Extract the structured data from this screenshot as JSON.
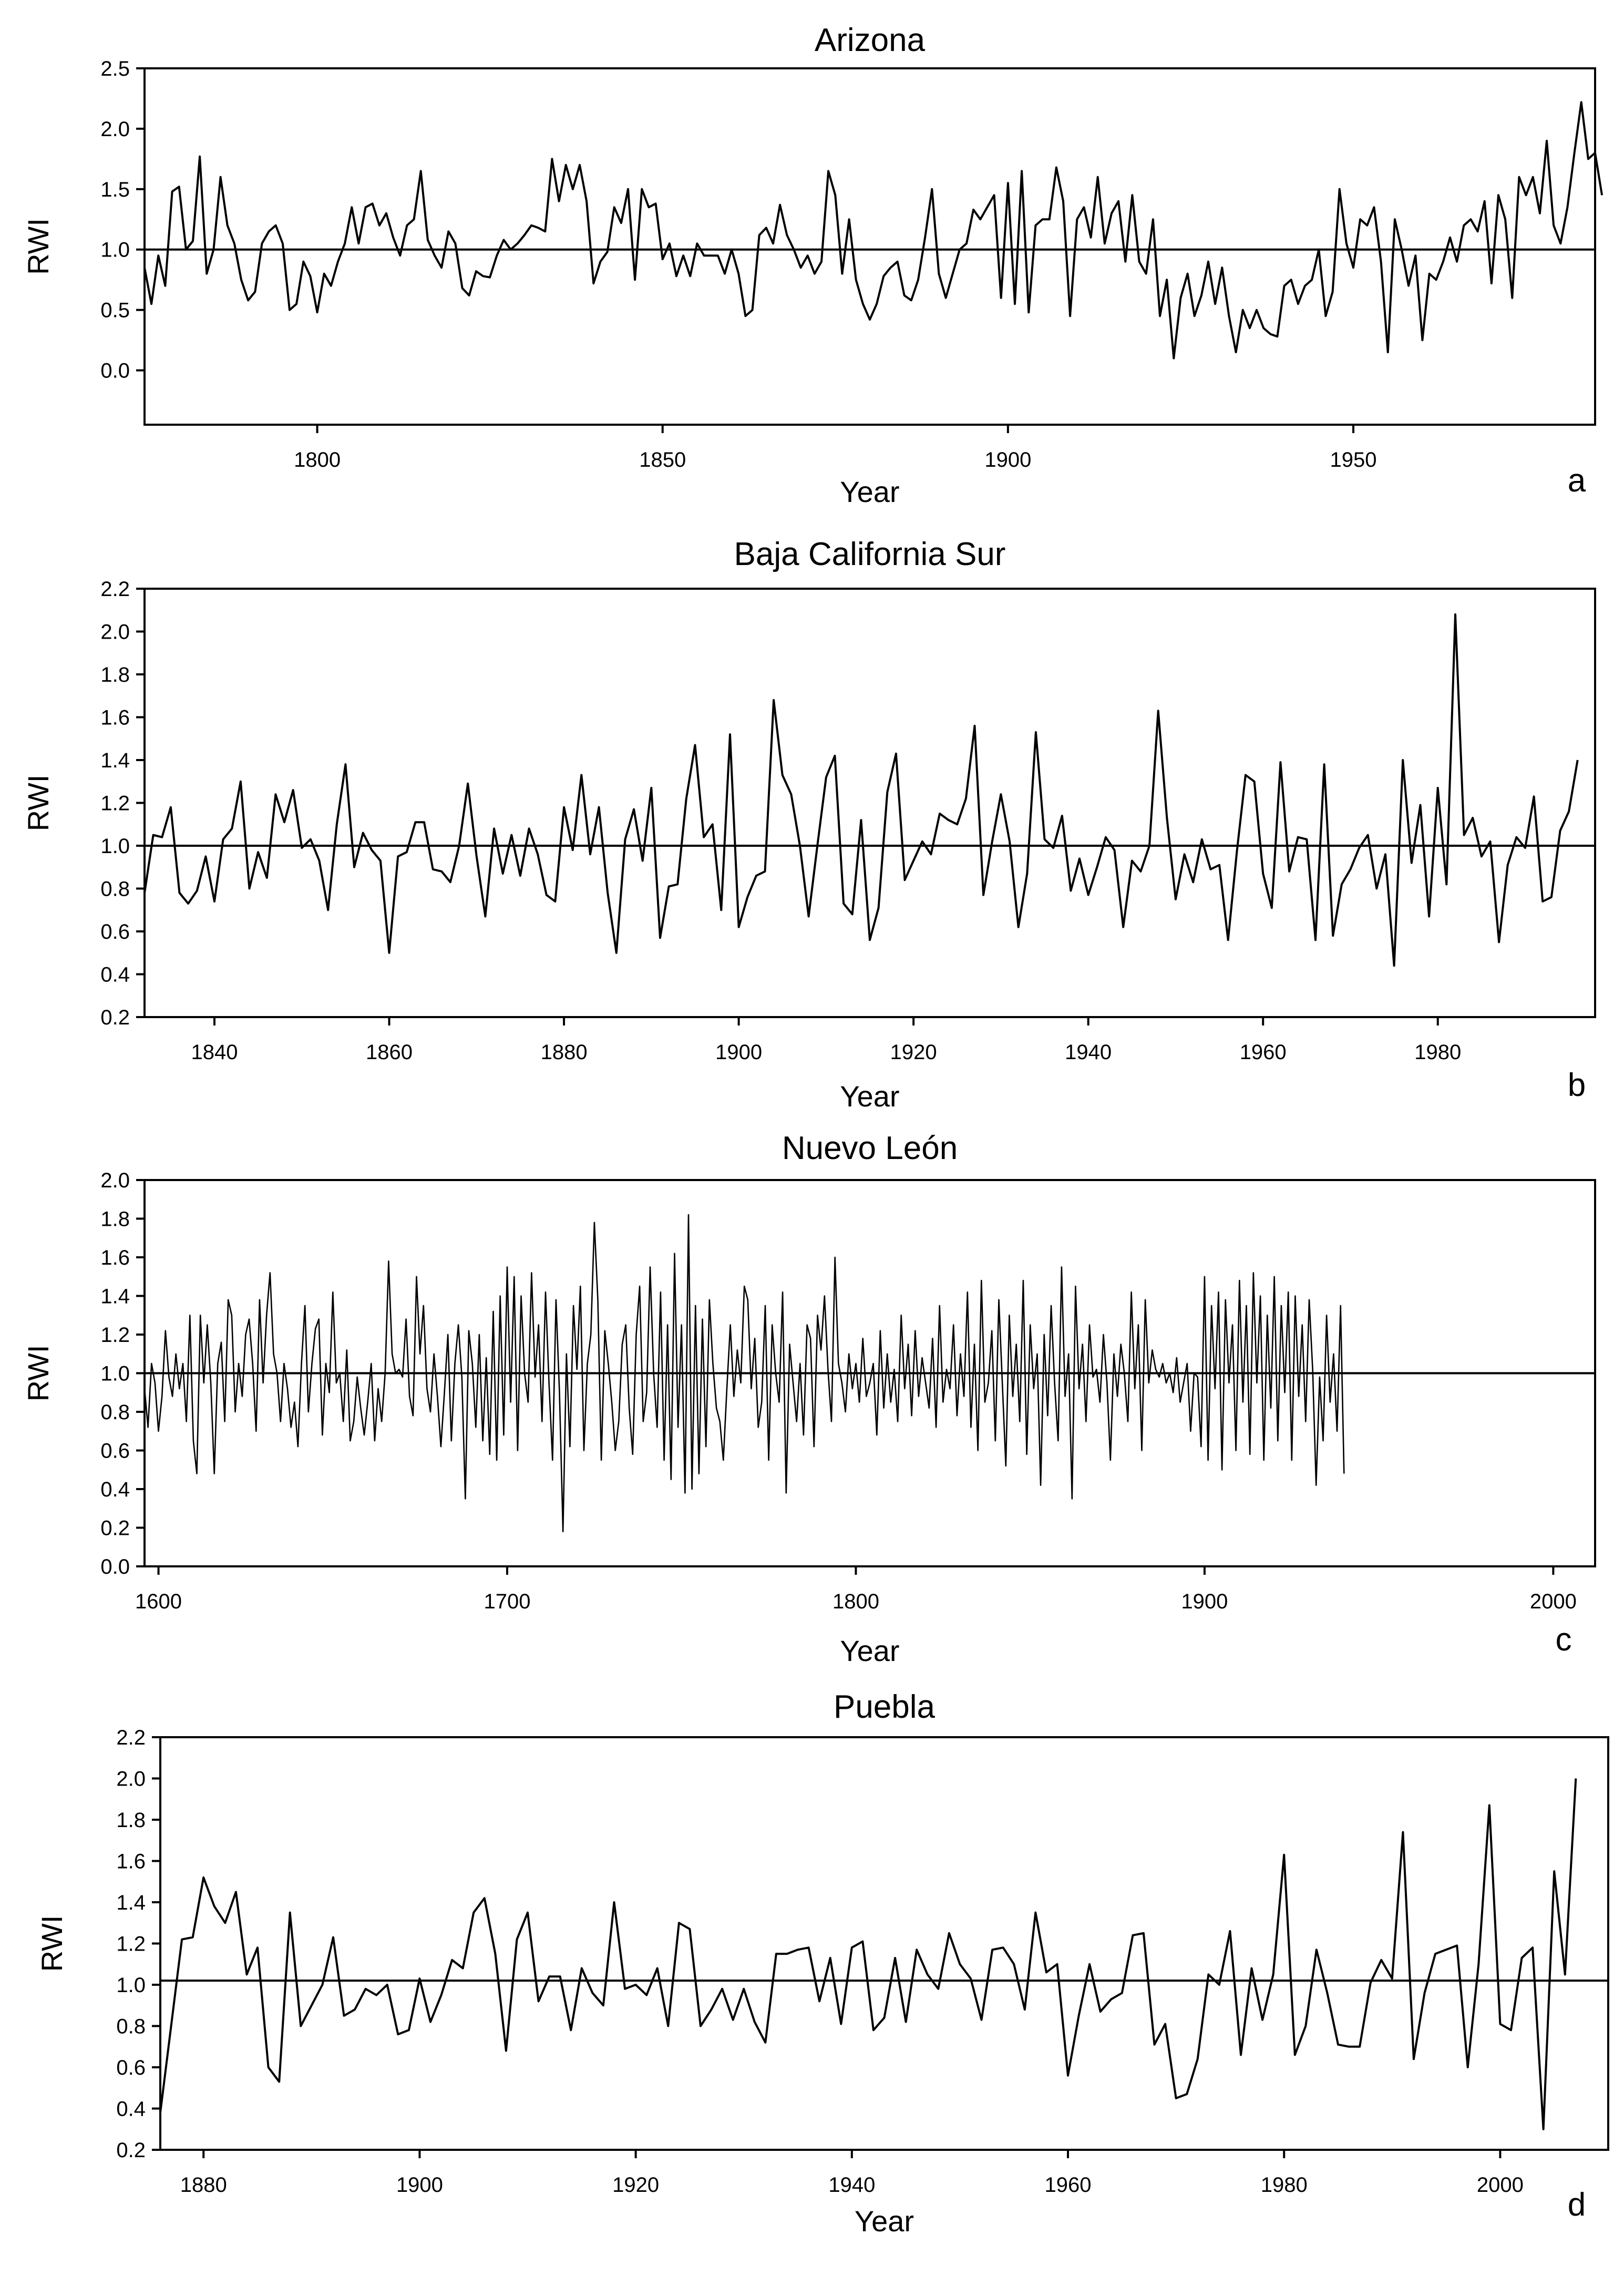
{
  "chart_data": [
    {
      "type": "line",
      "title": "Arizona",
      "panel": "a",
      "xlabel": "Year",
      "ylabel": "RWI",
      "xlim": [
        1775,
        1985
      ],
      "ylim": [
        -0.45,
        2.5
      ],
      "xticks": [
        1800,
        1850,
        1900,
        1950
      ],
      "yticks": [
        "0.0",
        "0.5",
        "1.0",
        "1.5",
        "2.0",
        "2.5"
      ],
      "reference_line": 1.0,
      "start_year": 1775,
      "values": [
        0.85,
        0.55,
        0.95,
        0.7,
        1.48,
        1.52,
        1.0,
        1.07,
        1.77,
        0.8,
        1.0,
        1.6,
        1.2,
        1.05,
        0.75,
        0.58,
        0.65,
        1.05,
        1.15,
        1.2,
        1.05,
        0.5,
        0.55,
        0.9,
        0.78,
        0.48,
        0.8,
        0.7,
        0.9,
        1.05,
        1.35,
        1.05,
        1.35,
        1.38,
        1.2,
        1.3,
        1.1,
        0.95,
        1.2,
        1.25,
        1.65,
        1.08,
        0.95,
        0.85,
        1.15,
        1.05,
        0.68,
        0.62,
        0.82,
        0.78,
        0.77,
        0.95,
        1.08,
        1.0,
        1.05,
        1.12,
        1.2,
        1.18,
        1.15,
        1.75,
        1.4,
        1.7,
        1.5,
        1.7,
        1.4,
        0.72,
        0.9,
        0.98,
        1.35,
        1.22,
        1.5,
        0.75,
        1.5,
        1.35,
        1.38,
        0.92,
        1.05,
        0.78,
        0.95,
        0.78,
        1.05,
        0.95,
        0.95,
        0.95,
        0.8,
        1.0,
        0.8,
        0.45,
        0.5,
        1.12,
        1.18,
        1.05,
        1.37,
        1.12,
        1.0,
        0.85,
        0.95,
        0.8,
        0.9,
        1.65,
        1.45,
        0.8,
        1.25,
        0.75,
        0.55,
        0.42,
        0.55,
        0.78,
        0.85,
        0.9,
        0.62,
        0.58,
        0.75,
        1.1,
        1.5,
        0.8,
        0.6,
        0.8,
        1.0,
        1.05,
        1.33,
        1.25,
        1.35,
        1.45,
        0.6,
        1.55,
        0.55,
        1.65,
        0.48,
        1.2,
        1.25,
        1.25,
        1.68,
        1.4,
        0.45,
        1.25,
        1.35,
        1.1,
        1.6,
        1.05,
        1.3,
        1.4,
        0.9,
        1.45,
        0.9,
        0.8,
        1.25,
        0.45,
        0.75,
        0.1,
        0.6,
        0.8,
        0.45,
        0.62,
        0.9,
        0.55,
        0.85,
        0.45,
        0.15,
        0.5,
        0.35,
        0.5,
        0.35,
        0.3,
        0.28,
        0.7,
        0.75,
        0.55,
        0.7,
        0.75,
        1.0,
        0.45,
        0.65,
        1.5,
        1.05,
        0.85,
        1.25,
        1.2,
        1.35,
        0.9,
        0.15,
        1.25,
        1.0,
        0.7,
        0.95,
        0.25,
        0.8,
        0.75,
        0.9,
        1.1,
        0.9,
        1.2,
        1.25,
        1.15,
        1.4,
        0.72,
        1.45,
        1.25,
        0.6,
        1.6,
        1.45,
        1.6,
        1.3,
        1.9,
        1.2,
        1.05,
        1.35,
        1.8,
        2.22,
        1.75,
        1.8,
        1.45
      ]
    },
    {
      "type": "line",
      "title": "Baja California Sur",
      "panel": "b",
      "xlabel": "Year",
      "ylabel": "RWI",
      "xlim": [
        1832,
        1998
      ],
      "ylim": [
        0.2,
        2.2
      ],
      "xticks": [
        1840,
        1860,
        1880,
        1900,
        1920,
        1940,
        1960,
        1980
      ],
      "yticks": [
        "0.2",
        "0.4",
        "0.6",
        "0.8",
        "1.0",
        "1.2",
        "1.4",
        "1.6",
        "1.8",
        "2.0",
        "2.2"
      ],
      "reference_line": 1.0,
      "start_year": 1832,
      "values": [
        0.78,
        1.05,
        1.04,
        1.18,
        0.78,
        0.73,
        0.79,
        0.95,
        0.74,
        1.03,
        1.08,
        1.3,
        0.8,
        0.97,
        0.85,
        1.24,
        1.11,
        1.26,
        0.99,
        1.03,
        0.93,
        0.7,
        1.1,
        1.38,
        0.9,
        1.06,
        0.98,
        0.93,
        0.5,
        0.95,
        0.97,
        1.11,
        1.11,
        0.89,
        0.88,
        0.83,
        1.0,
        1.29,
        0.95,
        0.67,
        1.08,
        0.87,
        1.05,
        0.86,
        1.08,
        0.96,
        0.77,
        0.74,
        1.18,
        0.98,
        1.33,
        0.96,
        1.18,
        0.78,
        0.5,
        1.03,
        1.17,
        0.93,
        1.27,
        0.57,
        0.81,
        0.82,
        1.22,
        1.47,
        1.04,
        1.1,
        0.7,
        1.52,
        0.62,
        0.76,
        0.86,
        0.88,
        1.68,
        1.33,
        1.24,
        1.0,
        0.67,
        1.0,
        1.32,
        1.42,
        0.73,
        0.68,
        1.12,
        0.56,
        0.71,
        1.25,
        1.43,
        0.84,
        0.93,
        1.02,
        0.96,
        1.15,
        1.12,
        1.1,
        1.22,
        1.56,
        0.77,
        1.02,
        1.24,
        1.02,
        0.62,
        0.87,
        1.53,
        1.03,
        0.99,
        1.14,
        0.79,
        0.94,
        0.77,
        0.9,
        1.04,
        0.98,
        0.62,
        0.93,
        0.88,
        1.0,
        1.63,
        1.13,
        0.75,
        0.96,
        0.83,
        1.03,
        0.89,
        0.91,
        0.56,
        0.97,
        1.33,
        1.3,
        0.87,
        0.71,
        1.39,
        0.88,
        1.04,
        1.03,
        0.56,
        1.38,
        0.58,
        0.82,
        0.89,
        0.99,
        1.05,
        0.8,
        0.96,
        0.44,
        1.4,
        0.92,
        1.19,
        0.67,
        1.27,
        0.82,
        2.08,
        1.05,
        1.13,
        0.95,
        1.02,
        0.55,
        0.91,
        1.04,
        0.99,
        1.23,
        0.74,
        0.76,
        1.07,
        1.16,
        1.4
      ]
    },
    {
      "type": "line",
      "title": "Nuevo León",
      "panel": "c",
      "xlabel": "Year",
      "ylabel": "RWI",
      "xlim": [
        1596,
        2012
      ],
      "ylim": [
        0.0,
        2.0
      ],
      "xticks": [
        1600,
        1700,
        1800,
        1900,
        2000
      ],
      "yticks": [
        "0.0",
        "0.2",
        "0.4",
        "0.6",
        "0.8",
        "1.0",
        "1.2",
        "1.4",
        "1.6",
        "1.8",
        "2.0"
      ],
      "reference_line": 1.0,
      "start_year": 1596,
      "values": [
        0.92,
        0.72,
        1.05,
        0.95,
        0.7,
        0.88,
        1.22,
        0.98,
        0.88,
        1.1,
        0.92,
        1.05,
        0.75,
        1.3,
        0.65,
        0.48,
        1.3,
        0.95,
        1.25,
        0.95,
        0.48,
        1.05,
        1.16,
        0.75,
        1.38,
        1.3,
        0.8,
        1.05,
        0.88,
        1.2,
        1.28,
        1.05,
        0.7,
        1.38,
        0.95,
        1.3,
        1.52,
        1.1,
        1.0,
        0.75,
        1.05,
        0.92,
        0.72,
        0.85,
        0.62,
        1.05,
        1.35,
        0.8,
        1.05,
        1.23,
        1.28,
        0.68,
        1.05,
        0.9,
        1.42,
        0.95,
        1.0,
        0.75,
        1.12,
        0.65,
        0.75,
        0.98,
        0.82,
        0.68,
        0.85,
        1.05,
        0.65,
        0.92,
        0.75,
        1.0,
        1.58,
        1.1,
        1.0,
        1.02,
        0.98,
        1.28,
        0.88,
        0.78,
        1.5,
        1.1,
        1.35,
        0.92,
        0.8,
        1.1,
        0.88,
        0.62,
        0.9,
        1.2,
        0.65,
        1.05,
        1.25,
        0.98,
        0.35,
        1.22,
        1.05,
        0.72,
        1.2,
        0.65,
        1.08,
        0.58,
        1.32,
        0.55,
        1.4,
        0.68,
        1.55,
        0.85,
        1.5,
        0.6,
        1.4,
        1.0,
        0.85,
        1.52,
        0.98,
        1.25,
        0.75,
        1.42,
        0.95,
        0.55,
        1.38,
        0.9,
        0.18,
        1.1,
        0.62,
        1.35,
        1.02,
        1.45,
        0.6,
        1.05,
        1.2,
        1.78,
        1.38,
        0.55,
        1.22,
        1.05,
        0.85,
        0.6,
        0.75,
        1.15,
        1.25,
        0.82,
        0.58,
        1.2,
        1.45,
        0.75,
        0.9,
        1.55,
        1.0,
        0.72,
        1.42,
        0.55,
        1.25,
        0.45,
        1.62,
        0.72,
        1.25,
        0.38,
        1.82,
        0.4,
        1.35,
        0.48,
        1.28,
        0.62,
        1.38,
        1.05,
        0.82,
        0.75,
        0.55,
        0.92,
        1.25,
        0.88,
        1.12,
        0.95,
        1.45,
        1.38,
        0.92,
        1.18,
        0.72,
        0.85,
        1.35,
        0.55,
        1.25,
        1.0,
        0.85,
        1.42,
        0.38,
        1.15,
        0.95,
        0.75,
        1.05,
        0.68,
        1.25,
        1.18,
        0.62,
        1.3,
        1.12,
        1.4,
        1.02,
        0.75,
        1.6,
        1.05,
        0.95,
        0.8,
        1.1,
        0.92,
        1.05,
        0.85,
        1.18,
        0.88,
        0.95,
        1.05,
        0.68,
        1.22,
        0.82,
        1.1,
        0.85,
        1.02,
        0.75,
        1.3,
        0.92,
        1.15,
        0.78,
        1.22,
        0.88,
        1.08,
        0.95,
        0.82,
        1.18,
        0.72,
        1.35,
        0.85,
        1.02,
        0.92,
        1.25,
        0.78,
        1.1,
        0.88,
        1.42,
        0.72,
        1.15,
        0.6,
        1.48,
        0.85,
        0.95,
        1.22,
        0.65,
        1.38,
        0.95,
        0.52,
        1.3,
        0.88,
        1.15,
        0.75,
        1.48,
        0.58,
        1.25,
        0.92,
        1.1,
        0.42,
        1.2,
        0.78,
        1.35,
        0.95,
        0.65,
        1.55,
        0.88,
        1.1,
        0.35,
        1.45,
        0.92,
        1.15,
        0.75,
        1.25,
        0.98,
        1.02,
        0.85,
        1.2,
        0.95,
        0.55,
        1.1,
        0.88,
        1.15,
        1.0,
        0.75,
        1.42,
        0.92,
        1.25,
        0.6,
        1.38,
        0.95,
        1.12,
        1.02,
        0.98,
        1.05,
        0.95,
        1.0,
        0.9,
        1.08,
        0.85,
        0.95,
        1.05,
        0.7,
        1.0,
        0.98,
        0.62,
        1.5,
        0.55,
        1.35,
        0.92,
        1.42,
        0.5,
        1.38,
        0.95,
        1.25,
        0.6,
        1.48,
        0.85,
        1.35,
        0.58,
        1.52,
        0.95,
        1.4,
        0.55,
        1.3,
        0.82,
        1.5,
        0.65,
        1.35,
        0.9,
        1.42,
        0.55,
        1.4,
        0.88,
        1.25,
        0.75,
        1.38,
        1.02,
        0.42,
        0.98,
        0.65,
        1.3,
        0.85,
        1.1,
        0.7,
        1.35,
        0.48
      ]
    },
    {
      "type": "line",
      "title": "Puebla",
      "panel": "d",
      "xlabel": "Year",
      "ylabel": "RWI",
      "xlim": [
        1876,
        2010
      ],
      "ylim": [
        0.2,
        2.2
      ],
      "xticks": [
        1880,
        1900,
        1920,
        1940,
        1960,
        1980,
        2000
      ],
      "yticks": [
        "0.2",
        "0.4",
        "0.6",
        "0.8",
        "1.0",
        "1.2",
        "1.4",
        "1.6",
        "1.8",
        "2.0",
        "2.2"
      ],
      "reference_line": 1.02,
      "start_year": 1876,
      "values": [
        0.38,
        0.8,
        1.22,
        1.23,
        1.52,
        1.38,
        1.3,
        1.45,
        1.05,
        1.18,
        0.6,
        0.53,
        1.35,
        0.8,
        0.9,
        1.0,
        1.23,
        0.85,
        0.88,
        0.98,
        0.95,
        1.0,
        0.76,
        0.78,
        1.03,
        0.82,
        0.95,
        1.12,
        1.08,
        1.35,
        1.42,
        1.15,
        0.68,
        1.22,
        1.35,
        0.92,
        1.04,
        1.04,
        0.78,
        1.08,
        0.96,
        0.9,
        1.4,
        0.98,
        1.0,
        0.95,
        1.08,
        0.8,
        1.3,
        1.27,
        0.8,
        0.88,
        0.98,
        0.83,
        0.98,
        0.82,
        0.72,
        1.15,
        1.15,
        1.17,
        1.18,
        0.92,
        1.13,
        0.81,
        1.18,
        1.21,
        0.78,
        0.84,
        1.13,
        0.82,
        1.17,
        1.05,
        0.98,
        1.25,
        1.1,
        1.03,
        0.83,
        1.17,
        1.18,
        1.1,
        0.88,
        1.35,
        1.06,
        1.1,
        0.56,
        0.85,
        1.1,
        0.87,
        0.93,
        0.96,
        1.24,
        1.25,
        0.71,
        0.81,
        0.45,
        0.47,
        0.64,
        1.05,
        1.0,
        1.26,
        0.66,
        1.08,
        0.83,
        1.05,
        1.63,
        0.66,
        0.8,
        1.17,
        0.96,
        0.71,
        0.7,
        0.7,
        1.01,
        1.12,
        1.03,
        1.74,
        0.64,
        0.96,
        1.15,
        1.17,
        1.19,
        0.6,
        1.1,
        1.87,
        0.81,
        0.78,
        1.13,
        1.18,
        0.3,
        1.55,
        1.05,
        2.0
      ]
    }
  ]
}
